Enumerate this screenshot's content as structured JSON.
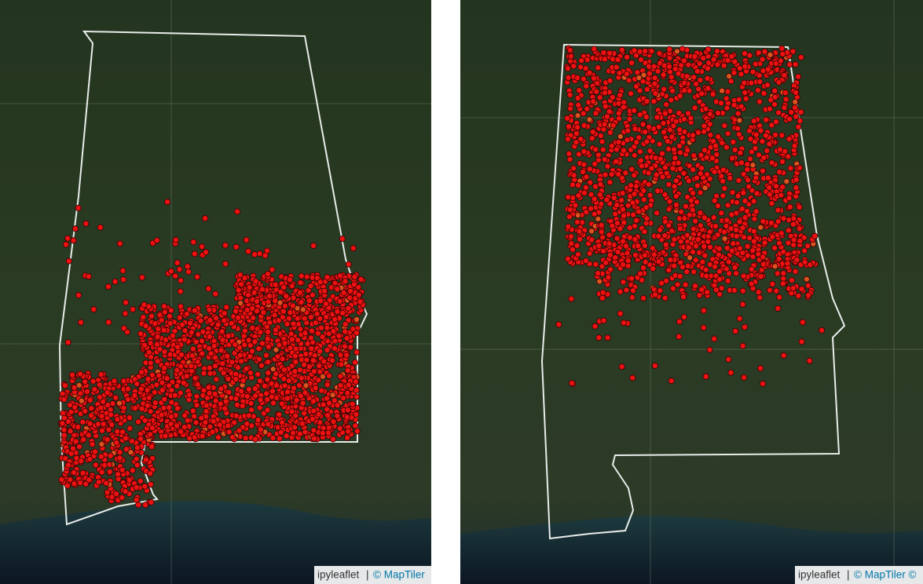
{
  "maps": [
    {
      "attribution": {
        "library": "ipyleaflet",
        "separator": "|",
        "provider": "© MapTiler"
      }
    },
    {
      "attribution": {
        "library": "ipyleaflet",
        "separator": "|",
        "provider": "© MapTiler ©"
      }
    }
  ]
}
